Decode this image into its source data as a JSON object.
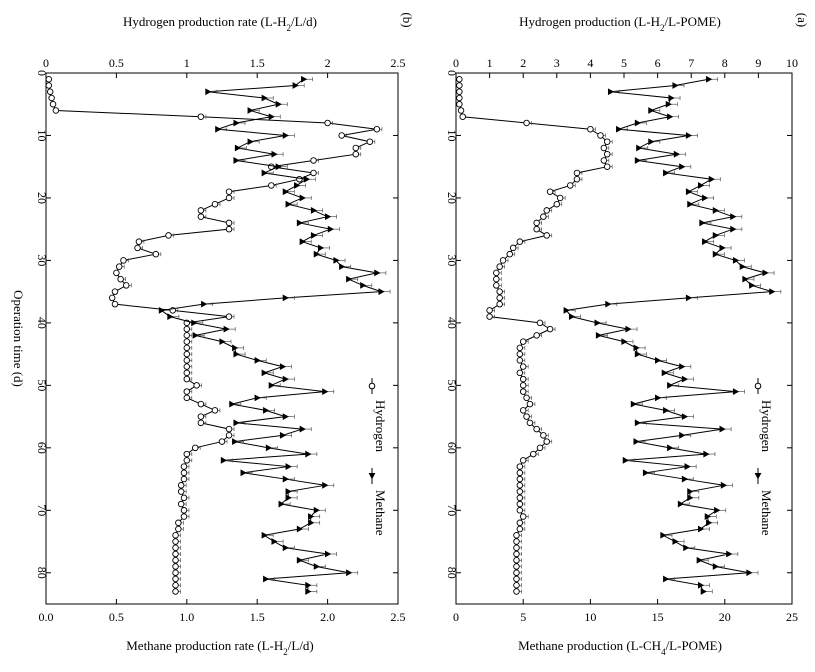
{
  "chart_data": [
    {
      "panel": "(a)",
      "type": "line",
      "xlabel": "Operation time (d)",
      "x_ticks": [
        "0",
        "10",
        "20",
        "30",
        "40",
        "50",
        "60",
        "70",
        "80"
      ],
      "xlim": [
        0,
        85
      ],
      "y_top_label": "Hydrogen production (L-H2/L-POME)",
      "y_top_label_parts": {
        "pre": "Hydrogen production (L-H",
        "sub": "2",
        "post": "/L-POME)"
      },
      "y_top_ticks": [
        "0",
        "1",
        "2",
        "3",
        "4",
        "5",
        "6",
        "7",
        "8",
        "9",
        "10"
      ],
      "y_top_lim": [
        0,
        10
      ],
      "y_bottom_label": "Methane production (L-CH4/L-POME)",
      "y_bottom_label_parts": {
        "pre": "Methane production (L-CH",
        "sub": "4",
        "post": "/L-POME)"
      },
      "y_bottom_ticks": [
        "0",
        "5",
        "10",
        "15",
        "20",
        "25"
      ],
      "y_bottom_lim": [
        0,
        25
      ],
      "legend": {
        "hydrogen": "Hydrogen",
        "methane": "Methane",
        "placement": "bottom-right"
      },
      "series": [
        {
          "name": "Hydrogen",
          "axis": "hydrogen",
          "marker": "open-circle",
          "x": [
            1,
            2,
            3,
            4,
            5,
            6,
            7,
            8,
            9,
            10,
            11,
            12,
            13,
            14,
            15,
            16,
            17,
            18,
            19,
            20,
            21,
            22,
            23,
            24,
            25,
            26,
            27,
            28,
            29,
            30,
            31,
            32,
            33,
            34,
            35,
            36,
            37,
            38,
            39,
            40,
            41,
            42,
            43,
            44,
            45,
            46,
            47,
            48,
            49,
            50,
            51,
            52,
            53,
            54,
            55,
            56,
            57,
            58,
            59,
            60,
            61,
            62,
            63,
            64,
            65,
            66,
            67,
            68,
            69,
            70,
            71,
            72,
            73,
            74,
            75,
            76,
            77,
            78,
            79,
            80,
            81,
            82,
            83
          ],
          "y": [
            0.1,
            0.1,
            0.1,
            0.1,
            0.1,
            0.15,
            0.2,
            2.1,
            4.0,
            4.3,
            4.5,
            4.4,
            4.5,
            4.4,
            4.5,
            3.6,
            3.6,
            3.4,
            2.8,
            3.1,
            3.0,
            2.7,
            2.6,
            2.4,
            2.4,
            2.7,
            1.9,
            1.7,
            1.6,
            1.4,
            1.3,
            1.2,
            1.2,
            1.2,
            1.3,
            1.3,
            1.3,
            1.0,
            1.0,
            2.5,
            2.8,
            2.4,
            2.0,
            1.9,
            1.9,
            1.9,
            2.0,
            1.9,
            2.0,
            2.0,
            2.0,
            2.1,
            2.2,
            2.0,
            2.1,
            2.2,
            2.4,
            2.6,
            2.7,
            2.5,
            2.3,
            2.0,
            1.9,
            1.9,
            1.9,
            1.9,
            1.9,
            1.9,
            1.9,
            1.9,
            2.0,
            1.9,
            1.9,
            1.8,
            1.8,
            1.8,
            1.8,
            1.8,
            1.8,
            1.8,
            1.8,
            1.8,
            1.8
          ]
        },
        {
          "name": "Methane",
          "axis": "methane",
          "marker": "filled-triangle",
          "x": [
            1,
            2,
            3,
            4,
            5,
            6,
            7,
            8,
            9,
            10,
            11,
            12,
            13,
            14,
            15,
            16,
            17,
            18,
            19,
            20,
            21,
            22,
            23,
            24,
            25,
            26,
            27,
            28,
            29,
            30,
            31,
            32,
            33,
            34,
            35,
            36,
            37,
            38,
            39,
            40,
            41,
            42,
            43,
            44,
            45,
            46,
            47,
            48,
            49,
            50,
            51,
            52,
            53,
            54,
            55,
            56,
            57,
            58,
            59,
            60,
            61,
            62,
            63,
            64,
            65,
            66,
            67,
            68,
            69,
            70,
            71,
            72,
            73,
            74,
            75,
            76,
            77,
            78,
            79,
            80,
            81,
            82,
            83
          ],
          "y": [
            18.8,
            16.3,
            11.5,
            16.0,
            15.8,
            14.5,
            15.9,
            13.5,
            12.1,
            17.3,
            14.5,
            13.6,
            16.4,
            13.5,
            16.8,
            15.6,
            19.0,
            18.2,
            17.3,
            18.5,
            17.4,
            19.3,
            20.6,
            18.3,
            20.6,
            19.3,
            18.5,
            19.8,
            19.3,
            20.8,
            21.3,
            23.0,
            21.5,
            22.0,
            23.5,
            17.3,
            11.3,
            8.2,
            8.6,
            10.5,
            12.8,
            10.6,
            12.5,
            13.4,
            13.5,
            15.0,
            16.8,
            15.5,
            17.0,
            15.9,
            20.8,
            15.0,
            13.2,
            15.6,
            17.0,
            13.5,
            19.8,
            16.8,
            13.4,
            15.9,
            18.6,
            12.6,
            17.2,
            14.1,
            17.0,
            19.9,
            17.4,
            17.4,
            16.7,
            19.4,
            18.7,
            18.8,
            18.2,
            15.4,
            16.3,
            17.1,
            20.3,
            18.1,
            19.3,
            21.8,
            15.6,
            18.2,
            18.4
          ]
        }
      ]
    },
    {
      "panel": "(b)",
      "type": "line",
      "xlabel": "Operation time (d)",
      "x_ticks": [
        "0",
        "10",
        "20",
        "30",
        "40",
        "50",
        "60",
        "70",
        "80"
      ],
      "xlim": [
        0,
        85
      ],
      "y_top_label": "Hydrogen production rate (L-H2/L/d)",
      "y_top_label_parts": {
        "pre": "Hydrogen production rate (L-H",
        "sub": "2",
        "post": "/L/d)"
      },
      "y_top_ticks": [
        "0",
        "0.5",
        "1",
        "1.5",
        "2",
        "2.5"
      ],
      "y_top_lim": [
        0,
        2.5
      ],
      "y_bottom_label": "Methane production rate (L-H2/L/d)",
      "y_bottom_label_parts": {
        "pre": "Methane production rate (L-H",
        "sub": "2",
        "post": "/L/d)"
      },
      "y_bottom_ticks": [
        "0.0",
        "0.5",
        "1.0",
        "1.5",
        "2.0",
        "2.5"
      ],
      "y_bottom_lim": [
        0,
        2.5
      ],
      "legend": {
        "hydrogen": "Hydrogen",
        "methane": "Methane",
        "placement": "bottom-right"
      },
      "series": [
        {
          "name": "Hydrogen",
          "axis": "hydrogen",
          "marker": "open-circle",
          "x": [
            1,
            2,
            3,
            4,
            5,
            6,
            7,
            8,
            9,
            10,
            11,
            12,
            13,
            14,
            15,
            16,
            17,
            18,
            19,
            20,
            21,
            22,
            23,
            24,
            25,
            26,
            27,
            28,
            29,
            30,
            31,
            32,
            33,
            34,
            35,
            36,
            37,
            38,
            39,
            40,
            41,
            42,
            43,
            44,
            45,
            46,
            47,
            48,
            49,
            50,
            51,
            52,
            53,
            54,
            55,
            56,
            57,
            58,
            59,
            60,
            61,
            62,
            63,
            64,
            65,
            66,
            67,
            68,
            69,
            70,
            71,
            72,
            73,
            74,
            75,
            76,
            77,
            78,
            79,
            80,
            81,
            82,
            83
          ],
          "y": [
            0.02,
            0.02,
            0.03,
            0.04,
            0.05,
            0.07,
            1.1,
            2.0,
            2.35,
            2.1,
            2.3,
            2.2,
            2.2,
            1.9,
            1.6,
            1.9,
            1.8,
            1.6,
            1.3,
            1.3,
            1.2,
            1.1,
            1.1,
            1.3,
            1.3,
            0.87,
            0.66,
            0.65,
            0.78,
            0.55,
            0.52,
            0.5,
            0.53,
            0.57,
            0.49,
            0.47,
            0.49,
            0.9,
            1.3,
            1.0,
            1.0,
            1.0,
            1.0,
            1.0,
            1.0,
            1.0,
            1.0,
            1.0,
            1.0,
            1.07,
            1.0,
            1.0,
            1.1,
            1.2,
            1.1,
            1.1,
            1.3,
            1.3,
            1.25,
            1.06,
            1.0,
            1.0,
            0.98,
            0.98,
            0.98,
            0.96,
            0.96,
            0.98,
            0.96,
            0.98,
            0.98,
            0.94,
            0.94,
            0.92,
            0.92,
            0.92,
            0.92,
            0.92,
            0.92,
            0.92,
            0.92,
            0.92,
            0.92
          ]
        },
        {
          "name": "Methane",
          "axis": "methane",
          "marker": "filled-triangle",
          "x": [
            1,
            2,
            3,
            4,
            5,
            6,
            7,
            8,
            9,
            10,
            11,
            12,
            13,
            14,
            15,
            16,
            17,
            18,
            19,
            20,
            21,
            22,
            23,
            24,
            25,
            26,
            27,
            28,
            29,
            30,
            31,
            32,
            33,
            34,
            35,
            36,
            37,
            38,
            39,
            40,
            41,
            42,
            43,
            44,
            45,
            46,
            47,
            48,
            49,
            50,
            51,
            52,
            53,
            54,
            55,
            56,
            57,
            58,
            59,
            60,
            61,
            62,
            63,
            64,
            65,
            66,
            67,
            68,
            69,
            70,
            71,
            72,
            73,
            74,
            75,
            76,
            77,
            78,
            79,
            80,
            81,
            82,
            83
          ],
          "y": [
            1.83,
            1.77,
            1.15,
            1.55,
            1.65,
            1.45,
            1.6,
            1.35,
            1.22,
            1.7,
            1.45,
            1.36,
            1.62,
            1.35,
            1.65,
            1.55,
            1.85,
            1.78,
            1.7,
            1.82,
            1.72,
            1.9,
            2.0,
            1.8,
            2.02,
            1.9,
            1.82,
            1.95,
            1.92,
            2.06,
            2.1,
            2.35,
            2.15,
            2.25,
            2.38,
            1.7,
            1.12,
            0.82,
            0.88,
            1.05,
            1.28,
            1.06,
            1.25,
            1.34,
            1.35,
            1.5,
            1.68,
            1.55,
            1.7,
            1.6,
            1.98,
            1.5,
            1.32,
            1.56,
            1.7,
            1.35,
            1.82,
            1.68,
            1.34,
            1.58,
            1.86,
            1.26,
            1.72,
            1.4,
            1.7,
            1.98,
            1.72,
            1.72,
            1.67,
            1.92,
            1.88,
            1.88,
            1.8,
            1.55,
            1.62,
            1.7,
            2.0,
            1.8,
            1.92,
            2.15,
            1.56,
            1.86,
            1.86
          ]
        }
      ]
    }
  ]
}
